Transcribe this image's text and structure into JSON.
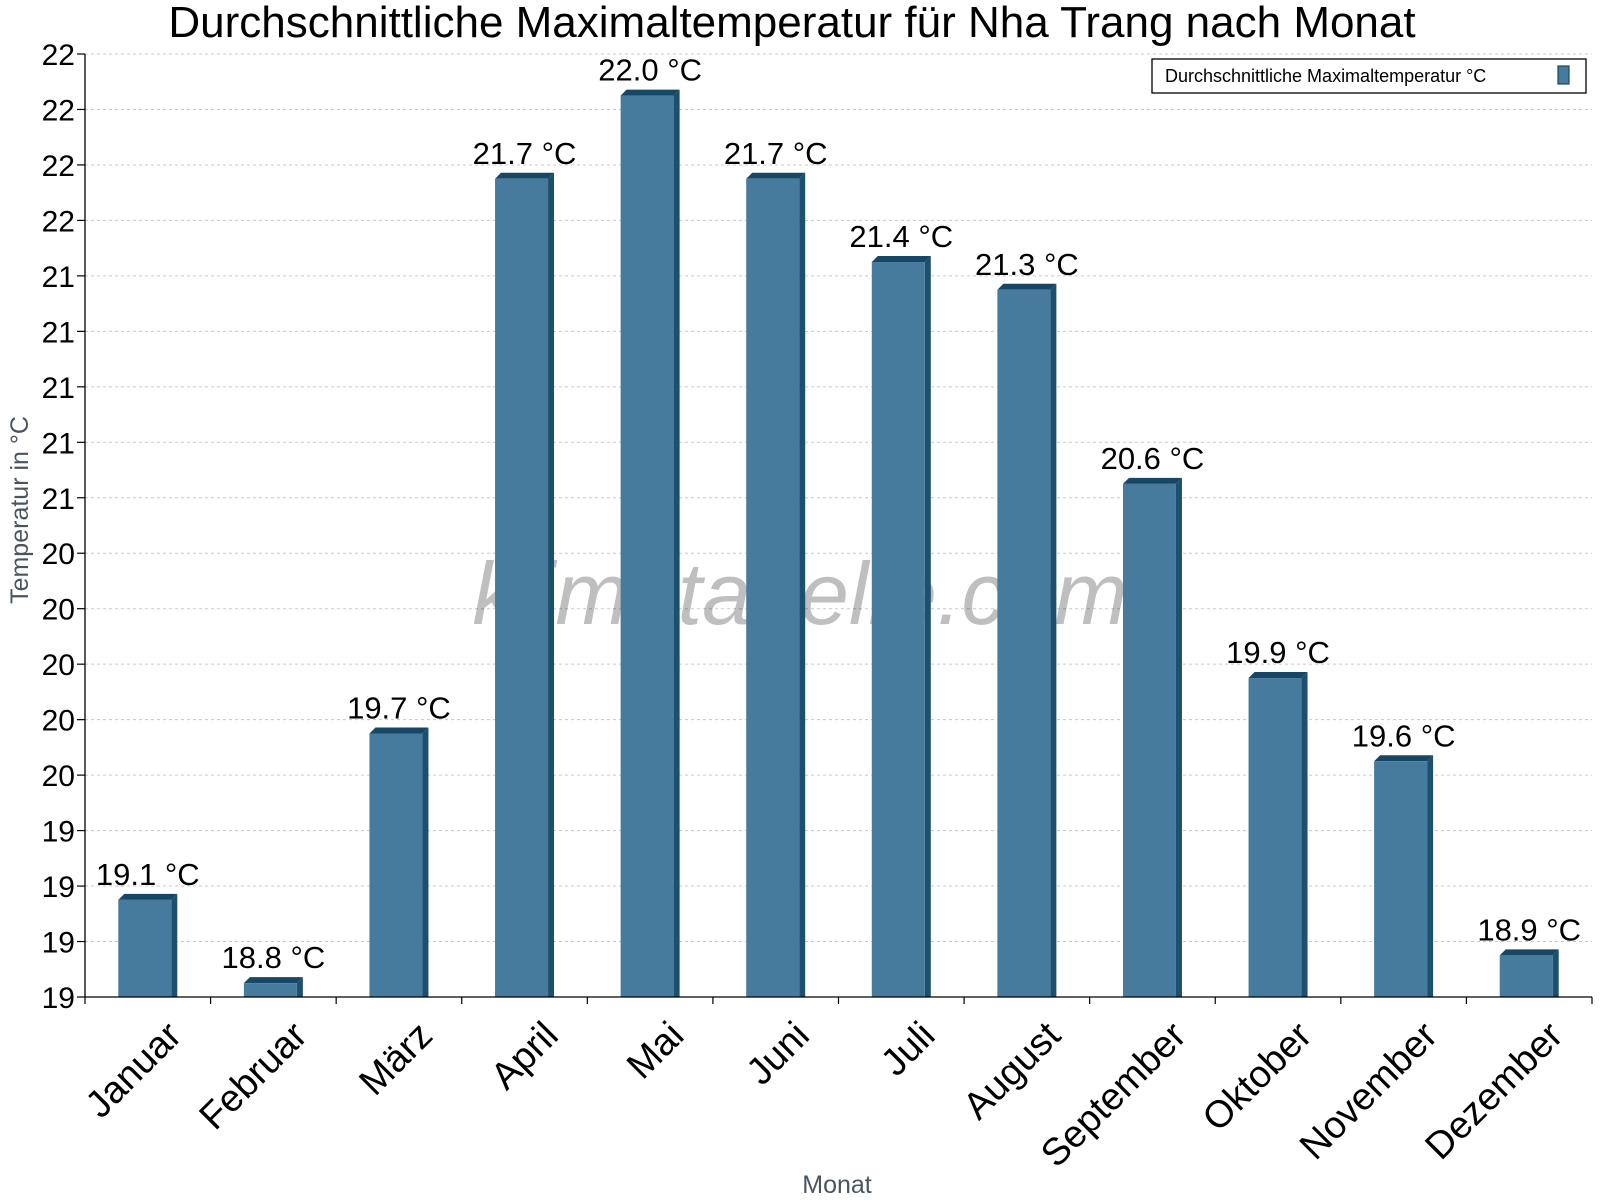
{
  "colors": {
    "bar_front": "#467b9d",
    "bar_side": "#1d4f6e",
    "bar_top": "#174764",
    "grid": "#c8c8c8",
    "axis": "#000000"
  },
  "watermark": "klimatabelle.com",
  "legend": {
    "label": "Durchschnittliche Maximaltemperatur °C"
  },
  "chart_data": {
    "type": "bar",
    "title": "Durchschnittliche Maximaltemperatur für Nha Trang nach Monat",
    "xlabel": "Monat",
    "ylabel": "Temperatur in °C",
    "categories": [
      "Januar",
      "Februar",
      "März",
      "April",
      "Mai",
      "Juni",
      "Juli",
      "August",
      "September",
      "Oktober",
      "November",
      "Dezember"
    ],
    "series": [
      {
        "name": "Durchschnittliche Maximaltemperatur °C",
        "values": [
          19.1,
          18.8,
          19.7,
          21.7,
          22.0,
          21.7,
          21.4,
          21.3,
          20.6,
          19.9,
          19.6,
          18.9
        ],
        "labels": [
          "19.1 °C",
          "18.8 °C",
          "19.7 °C",
          "21.7 °C",
          "22.0 °C",
          "21.7 °C",
          "21.4 °C",
          "21.3 °C",
          "20.6 °C",
          "19.9 °C",
          "19.6 °C",
          "18.9 °C"
        ]
      }
    ],
    "ylim": [
      18.75,
      22.15
    ],
    "yticks": [
      18.75,
      18.95,
      19.15,
      19.35,
      19.55,
      19.75,
      19.95,
      20.15,
      20.35,
      20.55,
      20.75,
      20.95,
      21.15,
      21.35,
      21.55,
      21.75,
      21.95,
      22.15
    ],
    "ytick_labels": [
      "19",
      "19",
      "19",
      "19",
      "20",
      "20",
      "20",
      "20",
      "20",
      "21",
      "21",
      "21",
      "21",
      "21",
      "22",
      "22",
      "22",
      "22"
    ],
    "grid": true,
    "legend_position": "top-right"
  }
}
